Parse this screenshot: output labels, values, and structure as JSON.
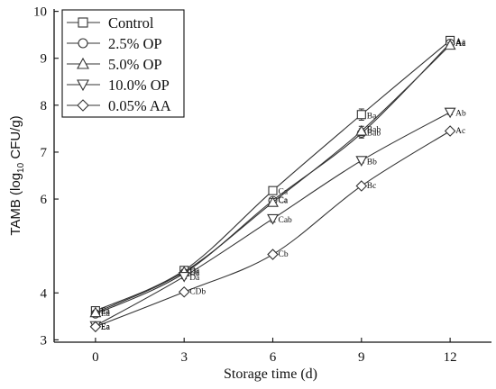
{
  "chart_data": {
    "type": "line",
    "xlabel": "Storage time (d)",
    "ylabel": {
      "main": "TAMB (log",
      "sub": "10",
      "tail": " CFU/g)"
    },
    "x": [
      0,
      3,
      6,
      9,
      12
    ],
    "x_ticks": [
      "0",
      "3",
      "6",
      "9",
      "12"
    ],
    "xlim": [
      -1.4,
      13.4
    ],
    "ylim": [
      2.95,
      10.05
    ],
    "y_ticks": [
      "3",
      "4",
      "6",
      "7",
      "8",
      "9",
      "10"
    ],
    "y_tick_values": [
      3,
      4,
      6,
      7,
      8,
      9,
      10
    ],
    "grid": false,
    "legend_position": "top-left",
    "series": [
      {
        "name": "Control",
        "marker": "square",
        "values": [
          3.62,
          4.48,
          6.18,
          7.8,
          9.38
        ],
        "errors": [
          0.05,
          0.05,
          0.05,
          0.12,
          0.05
        ],
        "letters": [
          "Ea",
          "Da",
          "Ca",
          "Ba",
          "Aa"
        ]
      },
      {
        "name": "2.5%  OP",
        "marker": "circle",
        "values": [
          3.55,
          4.42,
          5.97,
          7.4,
          9.32
        ],
        "errors": [
          0.05,
          0.06,
          0.05,
          0.1,
          0.05
        ],
        "letters": [
          "Ea",
          "Da",
          "Ca",
          "Bab",
          "Aa"
        ]
      },
      {
        "name": "5.0%  OP",
        "marker": "triangle-up",
        "values": [
          3.58,
          4.45,
          5.93,
          7.45,
          9.28
        ],
        "errors": [
          0.05,
          0.05,
          0.08,
          0.1,
          0.05
        ],
        "letters": [
          "Ea",
          "Da",
          "Ca",
          "Bab",
          "Aa"
        ]
      },
      {
        "name": "10.0% OP",
        "marker": "triangle-down",
        "values": [
          3.3,
          4.35,
          5.58,
          6.82,
          7.85
        ],
        "errors": [
          0.07,
          0.05,
          0.07,
          0.05,
          0.05
        ],
        "letters": [
          "Ea",
          "Da",
          "Cab",
          "Bb",
          "Ab"
        ]
      },
      {
        "name": "0.05% AA",
        "marker": "diamond",
        "values": [
          3.28,
          4.02,
          4.82,
          6.28,
          7.45
        ],
        "errors": [
          0.05,
          0.05,
          0.05,
          0.05,
          0.05
        ],
        "letters": [
          "Ea",
          "CDb",
          "Cb",
          "Bc",
          "Ac"
        ]
      }
    ]
  },
  "colors": {
    "axis": "#111111",
    "series": "#333333",
    "background": "#ffffff"
  }
}
